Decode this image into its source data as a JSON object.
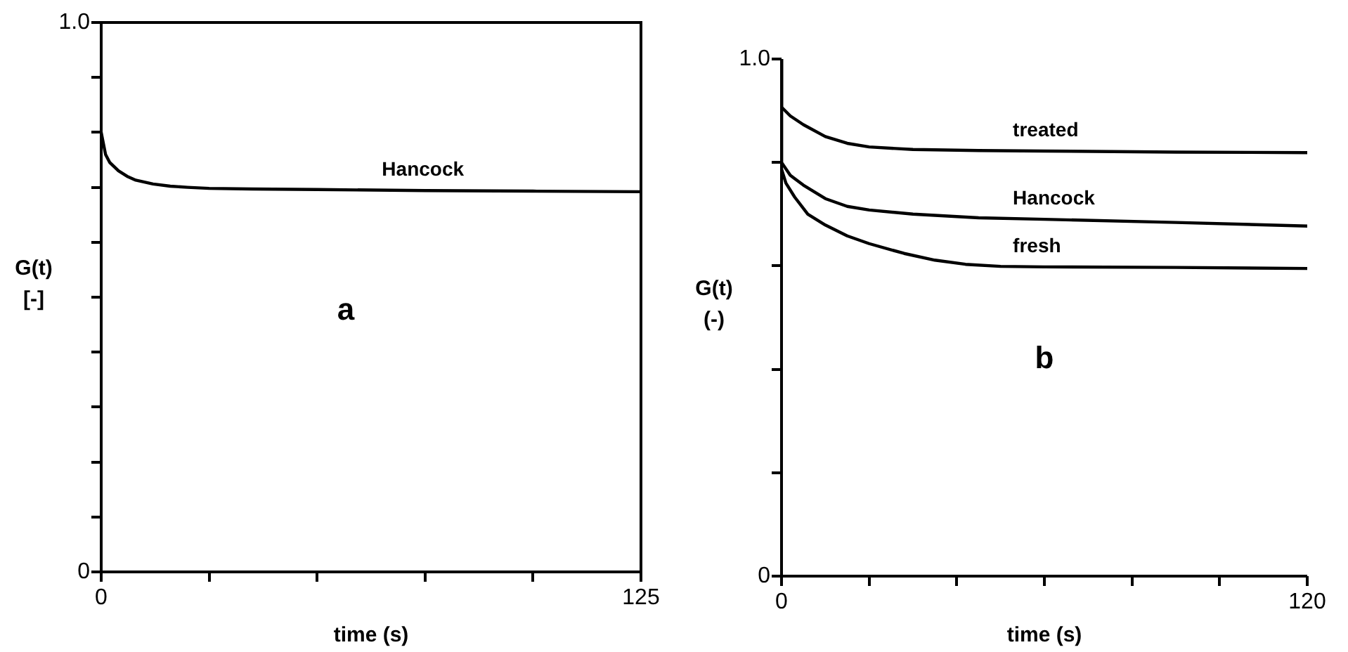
{
  "chart_data": [
    {
      "type": "line",
      "xlabel": "time (s)",
      "ylabel": "G(t)\n[-]",
      "annotations": [
        "a"
      ],
      "xlim": [
        0,
        125
      ],
      "xticks": [
        0,
        {
          "value": 25,
          "label": null
        },
        {
          "value": 50,
          "label": null
        },
        {
          "value": 75,
          "label": null
        },
        {
          "value": 100,
          "label": null
        },
        125
      ],
      "ylim": [
        0,
        1.0
      ],
      "yticks": [
        0,
        {
          "value": 0.1,
          "label": null
        },
        {
          "value": 0.2,
          "label": null
        },
        {
          "value": 0.3,
          "label": null
        },
        {
          "value": 0.4,
          "label": null
        },
        {
          "value": 0.5,
          "label": null
        },
        {
          "value": 0.6,
          "label": null
        },
        {
          "value": 0.7,
          "label": null
        },
        {
          "value": 0.8,
          "label": null
        },
        {
          "value": 0.9,
          "label": null
        },
        {
          "value": 1.0,
          "label": "1.0"
        }
      ],
      "grid": false,
      "legend": false,
      "marker": "none",
      "line_style": "solid",
      "series": [
        {
          "name": "Hancock",
          "color": "#000000",
          "x": [
            0,
            1,
            2,
            4,
            6,
            8,
            12,
            16,
            20,
            25,
            35,
            50,
            75,
            100,
            125
          ],
          "values": [
            0.8,
            0.76,
            0.745,
            0.73,
            0.72,
            0.713,
            0.706,
            0.702,
            0.7,
            0.698,
            0.697,
            0.696,
            0.694,
            0.693,
            0.692
          ]
        }
      ]
    },
    {
      "type": "line",
      "xlabel": "time (s)",
      "ylabel": "G(t)\n(-)",
      "annotations": [
        "b"
      ],
      "xlim": [
        0,
        120
      ],
      "xticks": [
        0,
        {
          "value": 20,
          "label": null
        },
        {
          "value": 40,
          "label": null
        },
        {
          "value": 60,
          "label": null
        },
        {
          "value": 80,
          "label": null
        },
        {
          "value": 100,
          "label": null
        },
        120
      ],
      "ylim": [
        0,
        1.0
      ],
      "yticks": [
        0,
        {
          "value": 0.2,
          "label": null
        },
        {
          "value": 0.4,
          "label": null
        },
        {
          "value": 0.6,
          "label": null
        },
        {
          "value": 0.8,
          "label": null
        },
        {
          "value": 1.0,
          "label": "1.0"
        }
      ],
      "grid": false,
      "legend": false,
      "marker": "none",
      "line_style": "solid",
      "series": [
        {
          "name": "treated",
          "color": "#000000",
          "x": [
            0,
            0,
            2,
            5,
            10,
            15,
            20,
            30,
            45,
            60,
            90,
            120
          ],
          "values": [
            1.0,
            0.907,
            0.89,
            0.873,
            0.85,
            0.837,
            0.83,
            0.825,
            0.823,
            0.822,
            0.82,
            0.819
          ]
        },
        {
          "name": "Hancock",
          "color": "#000000",
          "x": [
            0,
            0,
            2,
            5,
            10,
            15,
            20,
            30,
            45,
            60,
            90,
            120
          ],
          "values": [
            1.0,
            0.8,
            0.775,
            0.756,
            0.73,
            0.715,
            0.708,
            0.7,
            0.693,
            0.69,
            0.684,
            0.677
          ]
        },
        {
          "name": "fresh",
          "color": "#000000",
          "x": [
            0,
            0,
            1,
            3,
            6,
            10,
            15,
            20,
            28,
            35,
            42,
            50,
            60,
            90,
            120
          ],
          "values": [
            1.0,
            0.787,
            0.76,
            0.733,
            0.7,
            0.679,
            0.658,
            0.643,
            0.624,
            0.611,
            0.603,
            0.599,
            0.598,
            0.597,
            0.595
          ]
        }
      ]
    }
  ]
}
